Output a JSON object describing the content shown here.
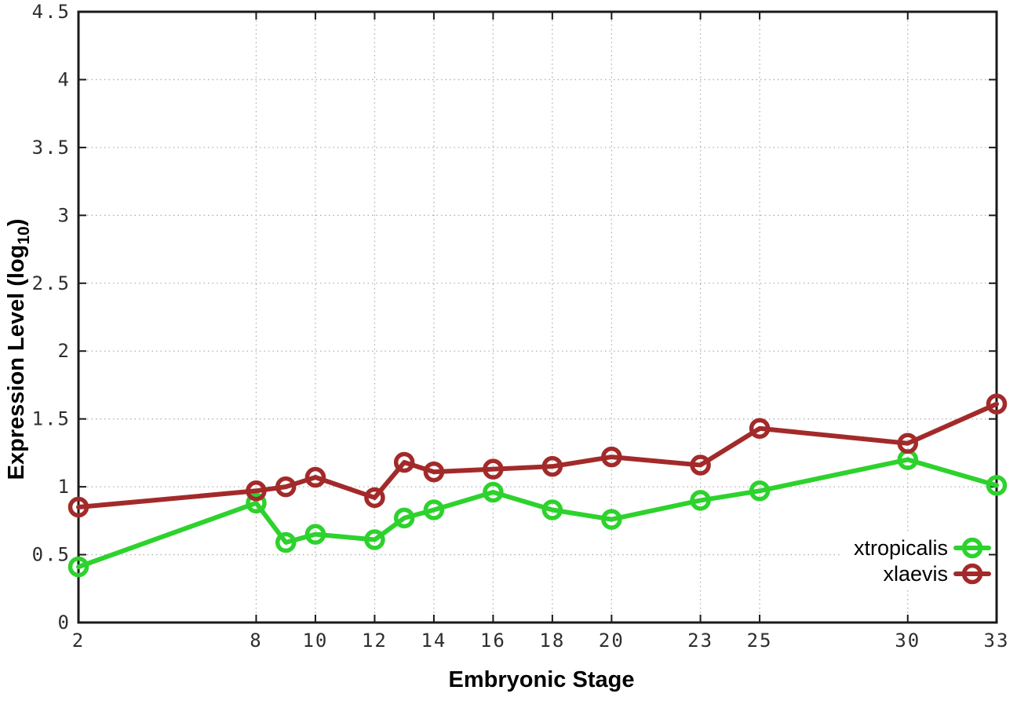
{
  "figure": {
    "background": "#ffffff",
    "border_color": "#1a1a1a",
    "grid_color": "#b0b0b0",
    "tick_label_color": "#2e2e2e"
  },
  "chart_data": {
    "type": "line",
    "title": "",
    "xlabel": "Embryonic Stage",
    "ylabel": "Expression Level (log10)",
    "ylabel_parts": {
      "prefix": "Expression Level (log",
      "sub": "10",
      "suffix": ")"
    },
    "x": [
      2,
      8,
      9,
      10,
      12,
      13,
      14,
      16,
      18,
      20,
      23,
      25,
      30,
      33
    ],
    "series": [
      {
        "name": "xtropicalis",
        "color": "#2dd22d",
        "marker": "open-circle",
        "values": [
          0.41,
          0.88,
          0.59,
          0.65,
          0.61,
          0.77,
          0.83,
          0.96,
          0.83,
          0.76,
          0.9,
          0.97,
          1.2,
          1.01
        ]
      },
      {
        "name": "xlaevis",
        "color": "#a32a2a",
        "marker": "open-circle",
        "values": [
          0.85,
          0.97,
          1.0,
          1.07,
          0.92,
          1.18,
          1.11,
          1.13,
          1.15,
          1.22,
          1.16,
          1.43,
          1.32,
          1.61
        ]
      }
    ],
    "xlim": [
      2,
      33
    ],
    "ylim": [
      0,
      4.5
    ],
    "xticks": [
      2,
      8,
      10,
      12,
      14,
      16,
      18,
      20,
      23,
      25,
      30,
      33
    ],
    "yticks": [
      0,
      0.5,
      1,
      1.5,
      2,
      2.5,
      3,
      3.5,
      4,
      4.5
    ],
    "grid": "dotted, both axes, mirrored inward ticks",
    "legend_position": "inside lower right",
    "legend_entries": [
      "xtropicalis",
      "xlaevis"
    ]
  }
}
